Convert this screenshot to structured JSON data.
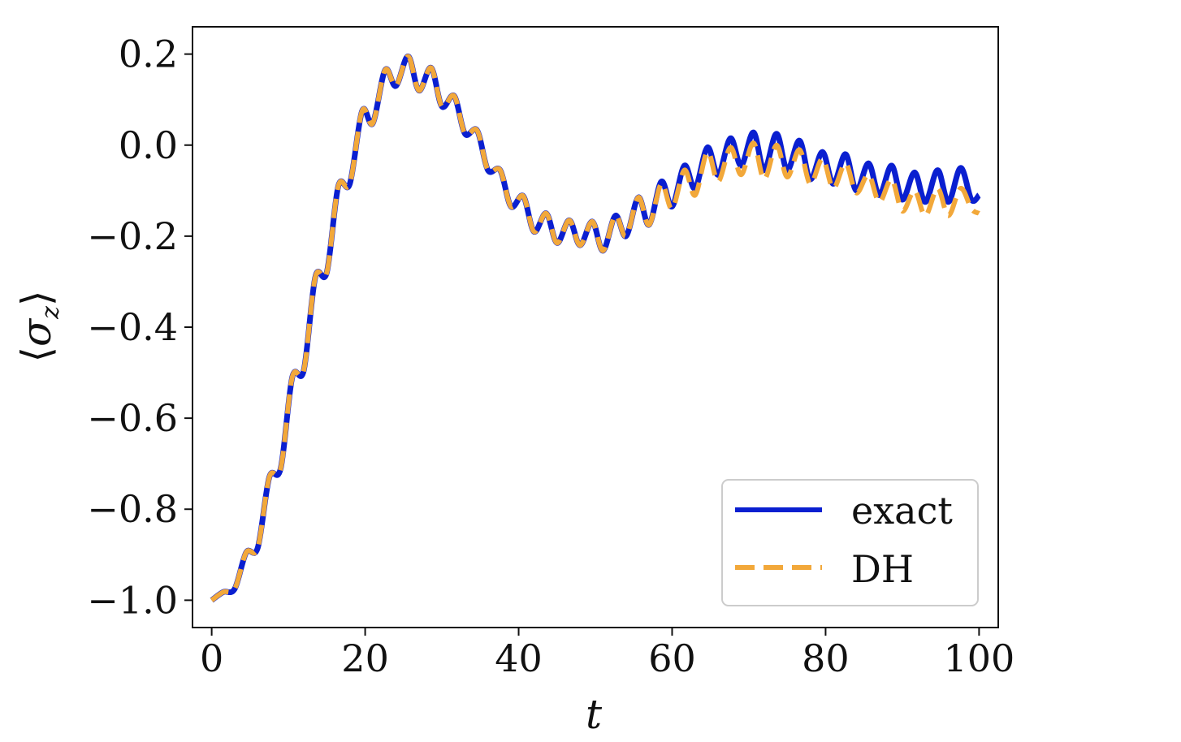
{
  "chart_data": {
    "type": "line",
    "title": "",
    "xlabel": "t",
    "ylabel_glyphs": {
      "left": "⟨",
      "symbol": "σ",
      "sub": "z",
      "right": "⟩"
    },
    "xlim": [
      -2.5,
      102.5
    ],
    "ylim": [
      -1.06,
      0.26
    ],
    "x_ticks": [
      0,
      20,
      40,
      60,
      80,
      100
    ],
    "x_tick_labels": [
      "0",
      "20",
      "40",
      "60",
      "80",
      "100"
    ],
    "y_ticks": [
      0.2,
      0.0,
      -0.2,
      -0.4,
      -0.6,
      -0.8,
      -1.0
    ],
    "y_tick_labels": [
      "0.2",
      "0.0",
      "−0.2",
      "−0.4",
      "−0.6",
      "−0.8",
      "−1.0"
    ],
    "grid": false,
    "legend_position": "lower-right",
    "series": [
      {
        "name": "exact",
        "color": "#0a1fd0",
        "style": "solid",
        "points": [
          [
            0,
            -1.0
          ],
          [
            1.5,
            -0.982
          ],
          [
            3,
            -0.975
          ],
          [
            4.5,
            -0.895
          ],
          [
            6,
            -0.885
          ],
          [
            7.5,
            -0.73
          ],
          [
            9,
            -0.71
          ],
          [
            10.5,
            -0.51
          ],
          [
            12,
            -0.495
          ],
          [
            13.5,
            -0.29
          ],
          [
            15,
            -0.28
          ],
          [
            16.5,
            -0.09
          ],
          [
            18,
            -0.085
          ],
          [
            19.6,
            0.075
          ],
          [
            21,
            0.048
          ],
          [
            22.6,
            0.165
          ],
          [
            24,
            0.13
          ],
          [
            25.6,
            0.195
          ],
          [
            27,
            0.12
          ],
          [
            28.6,
            0.17
          ],
          [
            30,
            0.085
          ],
          [
            31.6,
            0.108
          ],
          [
            33,
            0.025
          ],
          [
            34.6,
            0.032
          ],
          [
            36,
            -0.055
          ],
          [
            37.6,
            -0.055
          ],
          [
            39,
            -0.135
          ],
          [
            40.6,
            -0.112
          ],
          [
            42,
            -0.19
          ],
          [
            43.6,
            -0.15
          ],
          [
            45,
            -0.215
          ],
          [
            46.6,
            -0.165
          ],
          [
            48,
            -0.22
          ],
          [
            49.6,
            -0.168
          ],
          [
            51,
            -0.232
          ],
          [
            52.6,
            -0.155
          ],
          [
            54,
            -0.2
          ],
          [
            55.6,
            -0.115
          ],
          [
            57,
            -0.175
          ],
          [
            58.6,
            -0.08
          ],
          [
            60,
            -0.135
          ],
          [
            61.6,
            -0.045
          ],
          [
            63,
            -0.095
          ],
          [
            64.6,
            -0.005
          ],
          [
            66,
            -0.065
          ],
          [
            67.6,
            0.015
          ],
          [
            69,
            -0.045
          ],
          [
            70.6,
            0.028
          ],
          [
            72,
            -0.055
          ],
          [
            73.6,
            0.025
          ],
          [
            75,
            -0.055
          ],
          [
            76.6,
            0.01
          ],
          [
            78,
            -0.075
          ],
          [
            79.6,
            -0.015
          ],
          [
            81,
            -0.085
          ],
          [
            82.6,
            -0.02
          ],
          [
            84,
            -0.1
          ],
          [
            85.6,
            -0.04
          ],
          [
            87,
            -0.11
          ],
          [
            88.6,
            -0.045
          ],
          [
            90,
            -0.12
          ],
          [
            91.6,
            -0.06
          ],
          [
            93,
            -0.125
          ],
          [
            94.6,
            -0.055
          ],
          [
            96,
            -0.125
          ],
          [
            97.6,
            -0.05
          ],
          [
            99,
            -0.12
          ],
          [
            100,
            -0.11
          ]
        ]
      },
      {
        "name": "DH",
        "color": "#f2a83a",
        "style": "dashed",
        "points": [
          [
            0,
            -1.0
          ],
          [
            1.5,
            -0.982
          ],
          [
            3,
            -0.975
          ],
          [
            4.5,
            -0.895
          ],
          [
            6,
            -0.885
          ],
          [
            7.5,
            -0.73
          ],
          [
            9,
            -0.71
          ],
          [
            10.5,
            -0.51
          ],
          [
            12,
            -0.495
          ],
          [
            13.5,
            -0.29
          ],
          [
            15,
            -0.28
          ],
          [
            16.5,
            -0.09
          ],
          [
            18,
            -0.085
          ],
          [
            19.6,
            0.075
          ],
          [
            21,
            0.048
          ],
          [
            22.6,
            0.165
          ],
          [
            24,
            0.13
          ],
          [
            25.6,
            0.195
          ],
          [
            27,
            0.12
          ],
          [
            28.6,
            0.17
          ],
          [
            30,
            0.085
          ],
          [
            31.6,
            0.108
          ],
          [
            33,
            0.025
          ],
          [
            34.6,
            0.032
          ],
          [
            36,
            -0.055
          ],
          [
            37.6,
            -0.055
          ],
          [
            39,
            -0.135
          ],
          [
            40.6,
            -0.112
          ],
          [
            42,
            -0.19
          ],
          [
            43.6,
            -0.15
          ],
          [
            45,
            -0.215
          ],
          [
            46.6,
            -0.165
          ],
          [
            48,
            -0.22
          ],
          [
            49.6,
            -0.168
          ],
          [
            51,
            -0.232
          ],
          [
            52.6,
            -0.155
          ],
          [
            54,
            -0.2
          ],
          [
            55.6,
            -0.115
          ],
          [
            57,
            -0.175
          ],
          [
            58.6,
            -0.085
          ],
          [
            60,
            -0.14
          ],
          [
            61.6,
            -0.055
          ],
          [
            63,
            -0.11
          ],
          [
            64.6,
            -0.015
          ],
          [
            66,
            -0.08
          ],
          [
            67.6,
            -0.005
          ],
          [
            69,
            -0.065
          ],
          [
            70.6,
            0.005
          ],
          [
            72,
            -0.075
          ],
          [
            73.6,
            0.0
          ],
          [
            75,
            -0.07
          ],
          [
            76.6,
            -0.01
          ],
          [
            78,
            -0.085
          ],
          [
            79.6,
            -0.03
          ],
          [
            81,
            -0.095
          ],
          [
            82.6,
            -0.04
          ],
          [
            84,
            -0.105
          ],
          [
            85.6,
            -0.065
          ],
          [
            87,
            -0.125
          ],
          [
            88.6,
            -0.075
          ],
          [
            90,
            -0.145
          ],
          [
            91.6,
            -0.1
          ],
          [
            93,
            -0.155
          ],
          [
            94.6,
            -0.095
          ],
          [
            96,
            -0.155
          ],
          [
            97.6,
            -0.095
          ],
          [
            99,
            -0.14
          ],
          [
            100,
            -0.15
          ]
        ]
      }
    ]
  }
}
